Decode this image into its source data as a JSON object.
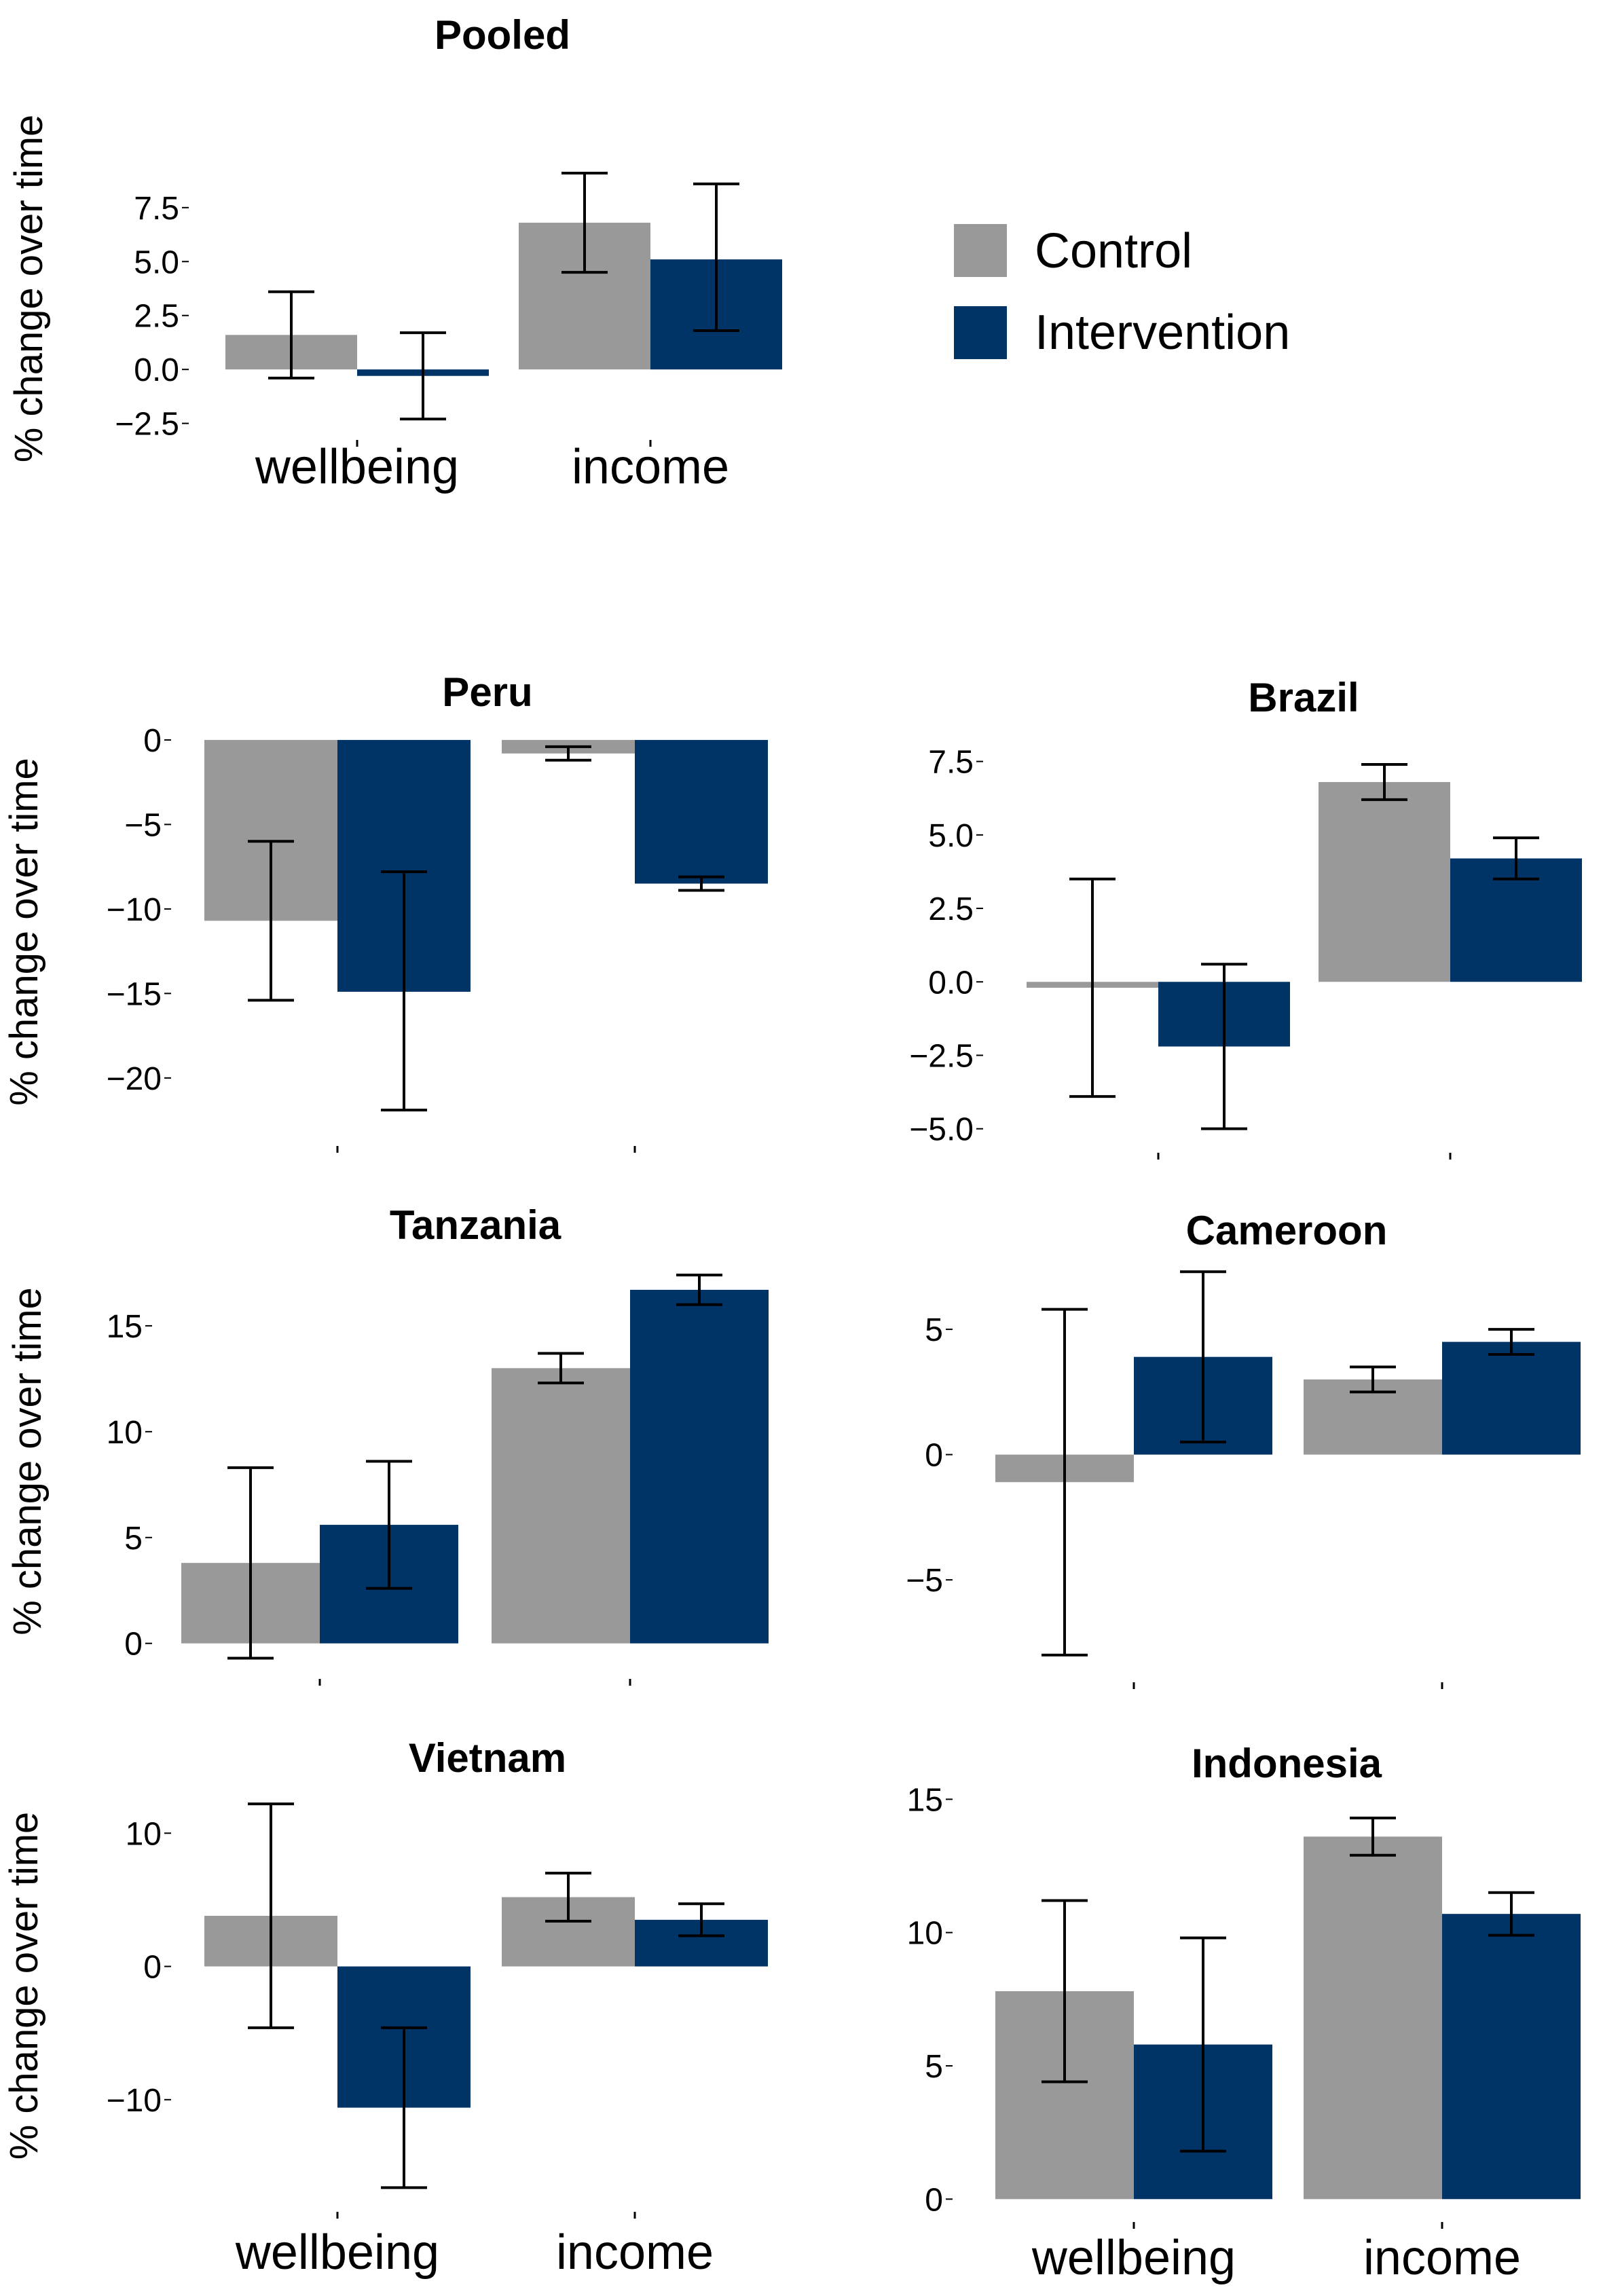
{
  "colors": {
    "control": "#999999",
    "intervention": "#003366",
    "axis": "#000000"
  },
  "legend": {
    "items": [
      {
        "label": "Control",
        "color": "#999999"
      },
      {
        "label": "Intervention",
        "color": "#003366"
      }
    ]
  },
  "chart_data": [
    {
      "type": "bar",
      "title": "Pooled",
      "ylabel": "% change over time",
      "categories": [
        "wellbeing",
        "income"
      ],
      "ylim": [
        -2.7,
        10.2
      ],
      "yticks": [
        -2.5,
        0.0,
        2.5,
        5.0,
        7.5
      ],
      "ytick_labels": [
        "−2.5",
        "0.0",
        "2.5",
        "5.0",
        "7.5"
      ],
      "series": [
        {
          "name": "Control",
          "values": [
            1.6,
            6.8
          ],
          "lower": [
            -0.4,
            4.5
          ],
          "upper": [
            3.6,
            9.1
          ]
        },
        {
          "name": "Intervention",
          "values": [
            -0.3,
            5.1
          ],
          "lower": [
            -2.3,
            1.8
          ],
          "upper": [
            1.7,
            8.6
          ]
        }
      ]
    },
    {
      "type": "bar",
      "title": "Peru",
      "ylabel": "% change over time",
      "categories": [
        "wellbeing",
        "income"
      ],
      "ylim": [
        -23.3,
        0.6
      ],
      "yticks": [
        -20,
        -15,
        -10,
        -5,
        0
      ],
      "ytick_labels": [
        "−20",
        "−15",
        "−10",
        "−5",
        "0"
      ],
      "series": [
        {
          "name": "Control",
          "values": [
            -10.7,
            -0.8
          ],
          "lower": [
            -15.4,
            -1.2
          ],
          "upper": [
            -6.0,
            -0.4
          ]
        },
        {
          "name": "Intervention",
          "values": [
            -14.9,
            -8.5
          ],
          "lower": [
            -21.9,
            -8.9
          ],
          "upper": [
            -7.8,
            -8.1
          ]
        }
      ]
    },
    {
      "type": "bar",
      "title": "Brazil",
      "ylabel": "",
      "categories": [
        "wellbeing",
        "income"
      ],
      "ylim": [
        -5.4,
        8.3
      ],
      "yticks": [
        -5.0,
        -2.5,
        0.0,
        2.5,
        5.0,
        7.5
      ],
      "ytick_labels": [
        "−5.0",
        "−2.5",
        "0.0",
        "2.5",
        "5.0",
        "7.5"
      ],
      "series": [
        {
          "name": "Control",
          "values": [
            -0.2,
            6.8
          ],
          "lower": [
            -3.9,
            6.2
          ],
          "upper": [
            3.5,
            7.4
          ]
        },
        {
          "name": "Intervention",
          "values": [
            -2.2,
            4.2
          ],
          "lower": [
            -5.0,
            3.5
          ],
          "upper": [
            0.6,
            4.9
          ]
        }
      ]
    },
    {
      "type": "bar",
      "title": "Tanzania",
      "ylabel": "% change over time",
      "categories": [
        "wellbeing",
        "income"
      ],
      "ylim": [
        -1.1,
        18.3
      ],
      "yticks": [
        0,
        5,
        10,
        15
      ],
      "ytick_labels": [
        "0",
        "5",
        "10",
        "15"
      ],
      "series": [
        {
          "name": "Control",
          "values": [
            3.8,
            13.0
          ],
          "lower": [
            -0.7,
            12.3
          ],
          "upper": [
            8.3,
            13.7
          ]
        },
        {
          "name": "Intervention",
          "values": [
            5.6,
            16.7
          ],
          "lower": [
            2.6,
            16.0
          ],
          "upper": [
            8.6,
            17.4
          ]
        }
      ]
    },
    {
      "type": "bar",
      "title": "Cameroon",
      "ylabel": "",
      "categories": [
        "wellbeing",
        "income"
      ],
      "ylim": [
        -8.6,
        8.2
      ],
      "yticks": [
        -5,
        0,
        5
      ],
      "ytick_labels": [
        "−5",
        "0",
        "5"
      ],
      "series": [
        {
          "name": "Control",
          "values": [
            -1.1,
            3.0
          ],
          "lower": [
            -8.0,
            2.5
          ],
          "upper": [
            5.8,
            3.5
          ]
        },
        {
          "name": "Intervention",
          "values": [
            3.9,
            4.5
          ],
          "lower": [
            0.5,
            4.0
          ],
          "upper": [
            7.3,
            5.0
          ]
        }
      ]
    },
    {
      "type": "bar",
      "title": "Vietnam",
      "ylabel": "% change over time",
      "categories": [
        "wellbeing",
        "income"
      ],
      "ylim": [
        -17.5,
        14.6
      ],
      "yticks": [
        -10,
        0,
        10
      ],
      "ytick_labels": [
        "−10",
        "0",
        "10"
      ],
      "series": [
        {
          "name": "Control",
          "values": [
            3.8,
            5.2
          ],
          "lower": [
            -4.6,
            3.4
          ],
          "upper": [
            12.2,
            7.0
          ]
        },
        {
          "name": "Intervention",
          "values": [
            -10.6,
            3.5
          ],
          "lower": [
            -16.6,
            2.3
          ],
          "upper": [
            -4.6,
            4.7
          ]
        }
      ]
    },
    {
      "type": "bar",
      "title": "Indonesia",
      "ylabel": "",
      "categories": [
        "wellbeing",
        "income"
      ],
      "ylim": [
        -0.4,
        15.9
      ],
      "yticks": [
        0,
        5,
        10,
        15
      ],
      "ytick_labels": [
        "0",
        "5",
        "10",
        "15"
      ],
      "series": [
        {
          "name": "Control",
          "values": [
            7.8,
            13.6
          ],
          "lower": [
            4.4,
            12.9
          ],
          "upper": [
            11.2,
            14.3
          ]
        },
        {
          "name": "Intervention",
          "values": [
            5.8,
            10.7
          ],
          "lower": [
            1.8,
            9.9
          ],
          "upper": [
            9.8,
            11.5
          ]
        }
      ]
    }
  ]
}
